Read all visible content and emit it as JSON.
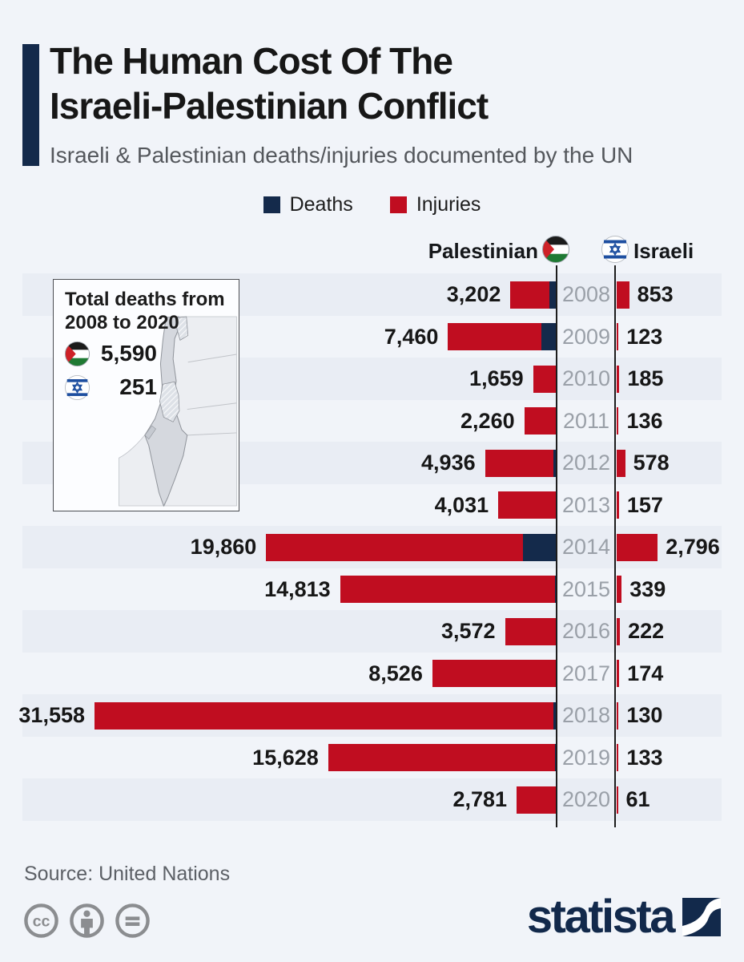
{
  "header": {
    "title_line1": "The Human Cost Of The",
    "title_line2": "Israeli-Palestinian Conflict",
    "subtitle": "Israeli & Palestinian deaths/injuries documented by the UN"
  },
  "legend": {
    "deaths_label": "Deaths",
    "injuries_label": "Injuries"
  },
  "columns": {
    "palestinian_label": "Palestinian",
    "israeli_label": "Israeli"
  },
  "inset": {
    "title": "Total deaths from 2008 to 2020",
    "palestinian_total": "5,590",
    "israeli_total": "251"
  },
  "chart_data": {
    "type": "bar",
    "orientation": "horizontal-diverging, years on center axis; Palestinian bars extend left, Israeli bars extend right",
    "title": "The Human Cost Of The Israeli-Palestinian Conflict",
    "subtitle": "Israeli & Palestinian deaths/injuries documented by the UN",
    "legend": [
      "Deaths",
      "Injuries"
    ],
    "legend_position": "top-center",
    "categories": [
      "2008",
      "2009",
      "2010",
      "2011",
      "2012",
      "2013",
      "2014",
      "2015",
      "2016",
      "2017",
      "2018",
      "2019",
      "2020"
    ],
    "series": [
      {
        "name": "Palestinian deaths/injuries (labeled bar totals)",
        "values": [
          3202,
          7460,
          1659,
          2260,
          4936,
          4031,
          19860,
          14813,
          3572,
          8526,
          31558,
          15628,
          2781
        ]
      },
      {
        "name": "Palestinian deaths (dark bar segment, unlabeled - estimated from bar length)",
        "values": [
          526,
          1066,
          87,
          118,
          260,
          39,
          2329,
          174,
          109,
          78,
          299,
          138,
          30
        ]
      },
      {
        "name": "Israeli deaths/injuries (labeled bar totals)",
        "values": [
          853,
          123,
          185,
          136,
          578,
          157,
          2796,
          339,
          222,
          174,
          130,
          133,
          61
        ]
      }
    ],
    "totals": {
      "palestinian_deaths_2008_2020": 5590,
      "israeli_deaths_2008_2020": 251
    },
    "rows": [
      {
        "year": "2008",
        "palestinian_label": "3,202",
        "palestinian_value": 3202,
        "palestinian_deaths_est": 526,
        "israeli_label": "853",
        "israeli_value": 853
      },
      {
        "year": "2009",
        "palestinian_label": "7,460",
        "palestinian_value": 7460,
        "palestinian_deaths_est": 1066,
        "israeli_label": "123",
        "israeli_value": 123
      },
      {
        "year": "2010",
        "palestinian_label": "1,659",
        "palestinian_value": 1659,
        "palestinian_deaths_est": 87,
        "israeli_label": "185",
        "israeli_value": 185
      },
      {
        "year": "2011",
        "palestinian_label": "2,260",
        "palestinian_value": 2260,
        "palestinian_deaths_est": 118,
        "israeli_label": "136",
        "israeli_value": 136
      },
      {
        "year": "2012",
        "palestinian_label": "4,936",
        "palestinian_value": 4936,
        "palestinian_deaths_est": 260,
        "israeli_label": "578",
        "israeli_value": 578
      },
      {
        "year": "2013",
        "palestinian_label": "4,031",
        "palestinian_value": 4031,
        "palestinian_deaths_est": 39,
        "israeli_label": "157",
        "israeli_value": 157
      },
      {
        "year": "2014",
        "palestinian_label": "19,860",
        "palestinian_value": 19860,
        "palestinian_deaths_est": 2329,
        "israeli_label": "2,796",
        "israeli_value": 2796
      },
      {
        "year": "2015",
        "palestinian_label": "14,813",
        "palestinian_value": 14813,
        "palestinian_deaths_est": 174,
        "israeli_label": "339",
        "israeli_value": 339
      },
      {
        "year": "2016",
        "palestinian_label": "3,572",
        "palestinian_value": 3572,
        "palestinian_deaths_est": 109,
        "israeli_label": "222",
        "israeli_value": 222
      },
      {
        "year": "2017",
        "palestinian_label": "8,526",
        "palestinian_value": 8526,
        "palestinian_deaths_est": 78,
        "israeli_label": "174",
        "israeli_value": 174
      },
      {
        "year": "2018",
        "palestinian_label": "31,558",
        "palestinian_value": 31558,
        "palestinian_deaths_est": 299,
        "israeli_label": "130",
        "israeli_value": 130
      },
      {
        "year": "2019",
        "palestinian_label": "15,628",
        "palestinian_value": 15628,
        "palestinian_deaths_est": 138,
        "israeli_label": "133",
        "israeli_value": 133
      },
      {
        "year": "2020",
        "palestinian_label": "2,781",
        "palestinian_value": 2781,
        "palestinian_deaths_est": 30,
        "israeli_label": "61",
        "israeli_value": 61
      }
    ]
  },
  "footer": {
    "source": "Source: United Nations",
    "brand": "statista"
  },
  "icons": {
    "palestinian_flag": "palestinian-flag-icon",
    "israeli_flag": "israeli-flag-icon",
    "cc": "cc-icon",
    "cc_attribution": "cc-attribution-icon",
    "cc_nd": "cc-nd-icon",
    "brand_mark": "statista-swoosh-icon"
  },
  "colors": {
    "deaths_navy": "#142a4b",
    "injuries_red": "#c00d20",
    "page_background": "#f1f4f9",
    "row_stripe": "#e9edf4",
    "year_gray": "#9aa0a8",
    "brand_navy": "#12294b"
  }
}
